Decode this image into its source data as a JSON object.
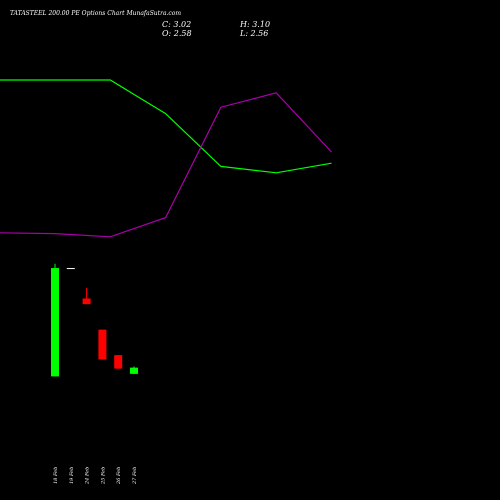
{
  "chart_data": {
    "type": "candlestick",
    "title": "TATASTEEL 200.00 PE Options Chart MunafaSutra.com",
    "readout": {
      "close_label": "C: 3.02",
      "high_label": "H: 3.10",
      "open_label": "O: 2.58",
      "low_label": "L: 2.56"
    },
    "categories": [
      "18 Feb",
      "19 Feb",
      "24 Feb",
      "25 Feb",
      "26 Feb",
      "27 Feb"
    ],
    "candles": [
      {
        "date": "18 Feb",
        "open": 2.4,
        "high": 10.35,
        "low": 2.4,
        "close": 10.05
      },
      {
        "date": "19 Feb",
        "open": 10.05,
        "high": 10.05,
        "low": 10.05,
        "close": 10.05
      },
      {
        "date": "24 Feb",
        "open": 7.9,
        "high": 8.65,
        "low": 7.5,
        "close": 7.5
      },
      {
        "date": "25 Feb",
        "open": 5.7,
        "high": 5.7,
        "low": 3.6,
        "close": 3.6
      },
      {
        "date": "26 Feb",
        "open": 3.9,
        "high": 3.9,
        "low": 2.95,
        "close": 2.95
      },
      {
        "date": "27 Feb",
        "open": 2.58,
        "high": 3.1,
        "low": 2.56,
        "close": 3.02
      }
    ],
    "lines": [
      {
        "color": "#00ff00",
        "points": [
          [
            -2,
            0.95
          ],
          [
            1,
            0.95
          ],
          [
            2,
            0.74
          ],
          [
            3,
            0.41
          ],
          [
            4,
            0.37
          ],
          [
            5,
            0.43
          ]
        ]
      },
      {
        "color": "#aa00aa",
        "points": [
          [
            -2,
            0.0
          ],
          [
            0,
            -0.01
          ],
          [
            1,
            -0.03
          ],
          [
            2,
            0.09
          ],
          [
            3,
            0.78
          ],
          [
            4,
            0.87
          ],
          [
            5,
            0.5
          ]
        ]
      }
    ],
    "colors": {
      "up": "#00ff00",
      "down": "#ff0000",
      "doji": "#ffffff",
      "background": "#000000",
      "text": "#ffffff"
    }
  }
}
